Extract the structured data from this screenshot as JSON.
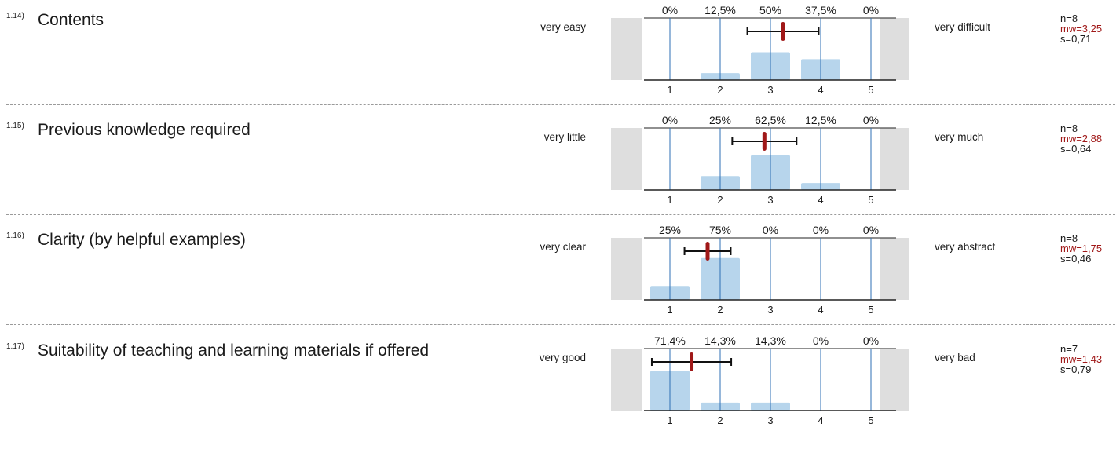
{
  "questions": [
    {
      "number": "1.14)",
      "title": "Contents",
      "left_label": "very easy",
      "right_label": "very difficult",
      "n": "n=8",
      "mw": "mw=3,25",
      "s": "s=0,71"
    },
    {
      "number": "1.15)",
      "title": "Previous knowledge required",
      "left_label": "very little",
      "right_label": "very much",
      "n": "n=8",
      "mw": "mw=2,88",
      "s": "s=0,64"
    },
    {
      "number": "1.16)",
      "title": "Clarity (by helpful examples)",
      "left_label": "very clear",
      "right_label": "very abstract",
      "n": "n=8",
      "mw": "mw=1,75",
      "s": "s=0,46"
    },
    {
      "number": "1.17)",
      "title": "Suitability of teaching and learning materials if offered",
      "left_label": "very good",
      "right_label": "very bad",
      "n": "n=7",
      "mw": "mw=1,43",
      "s": "s=0,79"
    }
  ],
  "chart_data": [
    {
      "type": "bar",
      "categories": [
        "1",
        "2",
        "3",
        "4",
        "5"
      ],
      "values": [
        0,
        12.5,
        50,
        37.5,
        0
      ],
      "value_labels": [
        "0%",
        "12,5%",
        "50%",
        "37,5%",
        "0%"
      ],
      "mean": 3.25,
      "sd": 0.71,
      "ylim": [
        0,
        100
      ]
    },
    {
      "type": "bar",
      "categories": [
        "1",
        "2",
        "3",
        "4",
        "5"
      ],
      "values": [
        0,
        25,
        62.5,
        12.5,
        0
      ],
      "value_labels": [
        "0%",
        "25%",
        "62,5%",
        "12,5%",
        "0%"
      ],
      "mean": 2.88,
      "sd": 0.64,
      "ylim": [
        0,
        100
      ]
    },
    {
      "type": "bar",
      "categories": [
        "1",
        "2",
        "3",
        "4",
        "5"
      ],
      "values": [
        25,
        75,
        0,
        0,
        0
      ],
      "value_labels": [
        "25%",
        "75%",
        "0%",
        "0%",
        "0%"
      ],
      "mean": 1.75,
      "sd": 0.46,
      "ylim": [
        0,
        100
      ]
    },
    {
      "type": "bar",
      "categories": [
        "1",
        "2",
        "3",
        "4",
        "5"
      ],
      "values": [
        71.4,
        14.3,
        14.3,
        0,
        0
      ],
      "value_labels": [
        "71,4%",
        "14,3%",
        "14,3%",
        "0%",
        "0%"
      ],
      "mean": 1.43,
      "sd": 0.79,
      "ylim": [
        0,
        100
      ]
    }
  ],
  "colors": {
    "bar": "#b7d5ec",
    "gridline": "#2e6fb5",
    "mean_marker": "#a01818",
    "side_box": "#dedede",
    "mw_text": "#a01818"
  }
}
